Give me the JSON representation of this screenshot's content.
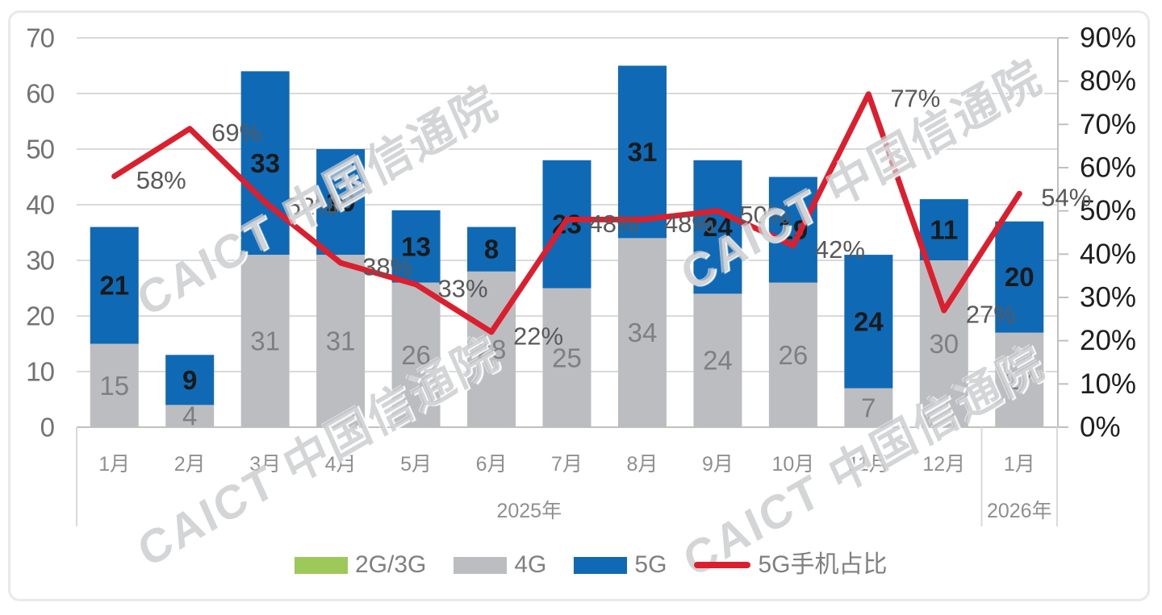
{
  "watermark": {
    "text": "CAICT 中国信通院"
  },
  "chart_data": {
    "type": "combo: stacked-bar + line",
    "categories": [
      "1月",
      "2月",
      "3月",
      "4月",
      "5月",
      "6月",
      "7月",
      "8月",
      "9月",
      "10月",
      "11月",
      "12月",
      "1月"
    ],
    "year_groups": [
      {
        "label": "2025年",
        "start": 0,
        "end": 11
      },
      {
        "label": "2026年",
        "start": 12,
        "end": 12
      }
    ],
    "bar_series": [
      {
        "name": "2G/3G",
        "color": "#9cc959",
        "label_color": "#7f7f7f",
        "values": [
          0,
          0,
          0,
          0,
          0,
          0,
          0,
          0,
          0,
          0,
          0,
          0,
          0
        ]
      },
      {
        "name": "4G",
        "color": "#bcbdc0",
        "label_color": "#7f7f7f",
        "values": [
          15,
          4,
          31,
          31,
          26,
          28,
          25,
          34,
          24,
          26,
          7,
          30,
          17
        ]
      },
      {
        "name": "5G",
        "color": "#1069b4",
        "label_color": "#1a1a1a",
        "label_bold": true,
        "values": [
          21,
          9,
          33,
          19,
          13,
          8,
          23,
          31,
          24,
          19,
          24,
          11,
          20
        ]
      }
    ],
    "line_series": {
      "name": "5G手机占比",
      "color": "#db1f2e",
      "axis": "right",
      "values_pct": [
        58,
        69,
        52,
        38,
        33,
        22,
        48,
        48,
        50,
        42,
        77,
        27,
        54
      ],
      "point_labels": [
        "58%",
        "69%",
        "52%",
        "38%",
        "33%",
        "22%",
        "48%",
        "48%",
        "50%",
        "42%",
        "77%",
        "27%",
        "54%"
      ]
    },
    "left_axis": {
      "min": 0,
      "max": 70,
      "step": 10,
      "ticks": [
        "0",
        "10",
        "20",
        "30",
        "40",
        "50",
        "60",
        "70"
      ]
    },
    "right_axis": {
      "min": 0,
      "max": 90,
      "step": 10,
      "ticks": [
        "0%",
        "10%",
        "20%",
        "30%",
        "40%",
        "50%",
        "60%",
        "70%",
        "80%",
        "90%"
      ]
    },
    "legend": {
      "items": [
        {
          "label": "2G/3G",
          "swatch": "rect",
          "color": "#9cc959"
        },
        {
          "label": "4G",
          "swatch": "rect",
          "color": "#bcbdc0"
        },
        {
          "label": "5G",
          "swatch": "rect",
          "color": "#1069b4"
        },
        {
          "label": "5G手机占比",
          "swatch": "line",
          "color": "#db1f2e"
        }
      ]
    },
    "grid": true,
    "colors": {
      "gridline": "#dadada",
      "axis_line": "#c0c0c0",
      "left_tick_text": "#737373",
      "right_tick_text": "#1f1f1f",
      "month_text": "#8f8f8f",
      "pct_label_text": "#595959"
    }
  }
}
